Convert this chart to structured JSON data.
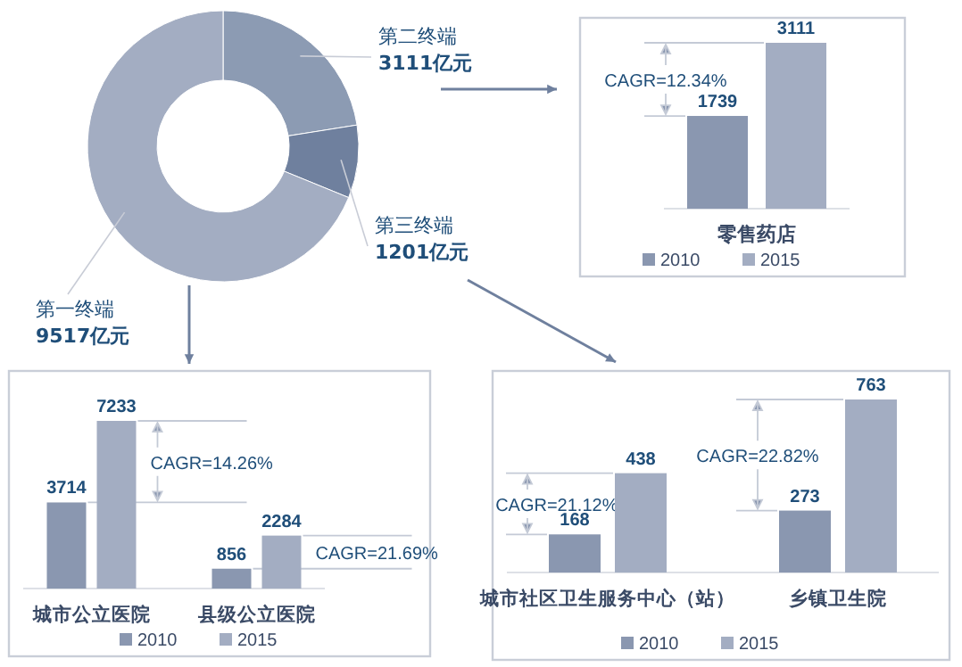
{
  "chart_data": [
    {
      "type": "donut",
      "categories": [
        "第二终端",
        "第三终端",
        "第一终端"
      ],
      "values": [
        3111,
        1201,
        9517
      ],
      "colors": [
        "#8c9bb3",
        "#6f809e",
        "#a3adc2"
      ],
      "value_labels": [
        "3111亿元",
        "1201亿元",
        "9517亿元"
      ]
    },
    {
      "type": "bar",
      "categories": [
        "零售药店"
      ],
      "series": [
        {
          "name": "2010",
          "color": "#8a97b0",
          "values": [
            1739
          ]
        },
        {
          "name": "2015",
          "color": "#a3adc2",
          "values": [
            3111
          ]
        }
      ],
      "data_labels": true,
      "legend": "bottom",
      "annotations": [
        "CAGR=12.34%"
      ]
    },
    {
      "type": "bar",
      "categories": [
        "城市公立医院",
        "县级公立医院"
      ],
      "series": [
        {
          "name": "2010",
          "color": "#8a97b0",
          "values": [
            3714,
            856
          ]
        },
        {
          "name": "2015",
          "color": "#a3adc2",
          "values": [
            7233,
            2284
          ]
        }
      ],
      "data_labels": true,
      "legend": "bottom",
      "annotations": [
        "CAGR=14.26%",
        "CAGR=21.69%"
      ]
    },
    {
      "type": "bar",
      "categories": [
        "城市社区卫生服务中心（站）",
        "乡镇卫生院"
      ],
      "series": [
        {
          "name": "2010",
          "color": "#8a97b0",
          "values": [
            168,
            273
          ]
        },
        {
          "name": "2015",
          "color": "#a3adc2",
          "values": [
            438,
            763
          ]
        }
      ],
      "data_labels": true,
      "legend": "bottom",
      "annotations": [
        "CAGR=21.12%",
        "CAGR=22.82%"
      ]
    }
  ]
}
